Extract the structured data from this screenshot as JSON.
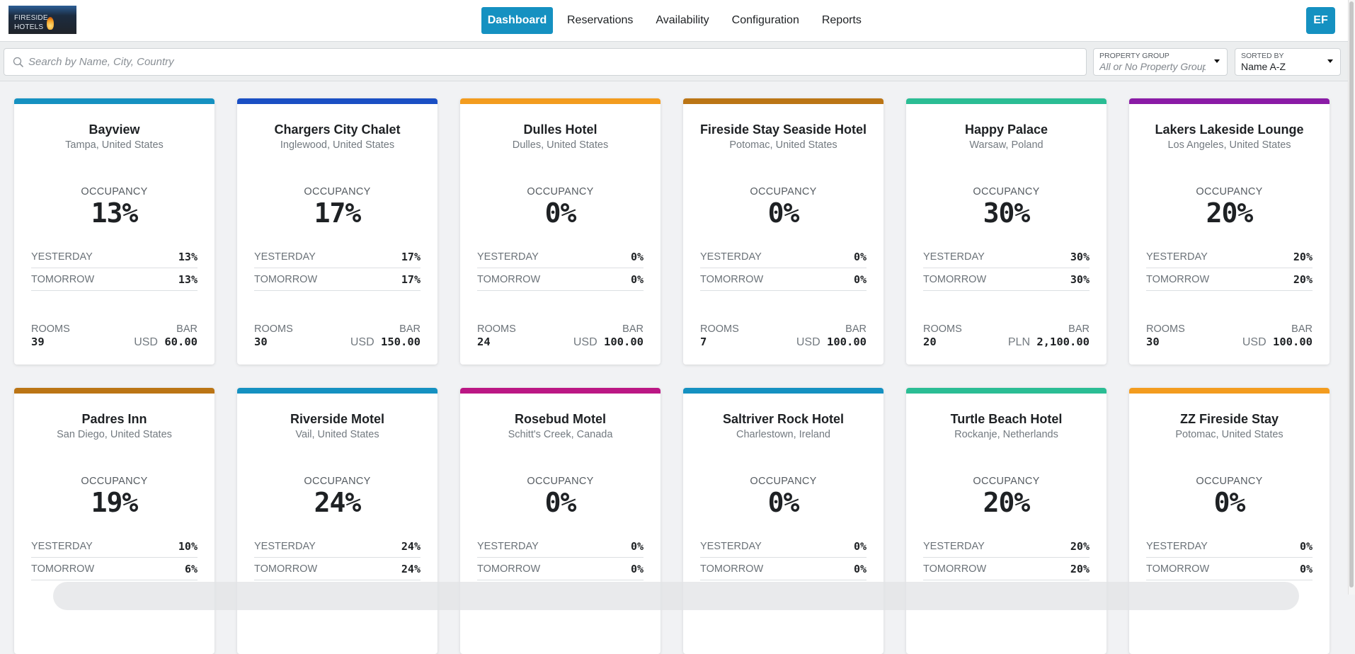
{
  "header": {
    "logo": {
      "line1": "FIRESIDE",
      "line2": "HOTELS"
    },
    "nav": [
      {
        "label": "Dashboard",
        "active": true
      },
      {
        "label": "Reservations",
        "active": false
      },
      {
        "label": "Availability",
        "active": false
      },
      {
        "label": "Configuration",
        "active": false
      },
      {
        "label": "Reports",
        "active": false
      }
    ],
    "avatar": "EF",
    "accent": "#1591c1"
  },
  "filters": {
    "search_placeholder": "Search by Name, City, Country",
    "search_value": "",
    "property_group": {
      "label": "PROPERTY GROUP",
      "value": "All or No Property Group"
    },
    "sorted_by": {
      "label": "SORTED BY",
      "value": "Name A-Z"
    }
  },
  "labels": {
    "occupancy": "OCCUPANCY",
    "yesterday": "YESTERDAY",
    "tomorrow": "TOMORROW",
    "rooms": "ROOMS",
    "bar": "BAR"
  },
  "hotels": [
    {
      "name": "Bayview",
      "location": "Tampa, United States",
      "occupancy": "13%",
      "yesterday": "13%",
      "tomorrow": "13%",
      "rooms": "39",
      "currency": "USD",
      "bar": "60.00",
      "color": "#1591c1"
    },
    {
      "name": "Chargers City Chalet",
      "location": "Inglewood, United States",
      "occupancy": "17%",
      "yesterday": "17%",
      "tomorrow": "17%",
      "rooms": "30",
      "currency": "USD",
      "bar": "150.00",
      "color": "#1a4fc4"
    },
    {
      "name": "Dulles Hotel",
      "location": "Dulles, United States",
      "occupancy": "0%",
      "yesterday": "0%",
      "tomorrow": "0%",
      "rooms": "24",
      "currency": "USD",
      "bar": "100.00",
      "color": "#f39c1f"
    },
    {
      "name": "Fireside Stay Seaside Hotel",
      "location": "Potomac, United States",
      "occupancy": "0%",
      "yesterday": "0%",
      "tomorrow": "0%",
      "rooms": "7",
      "currency": "USD",
      "bar": "100.00",
      "color": "#bb7515"
    },
    {
      "name": "Happy Palace",
      "location": "Warsaw, Poland",
      "occupancy": "30%",
      "yesterday": "30%",
      "tomorrow": "30%",
      "rooms": "20",
      "currency": "PLN",
      "bar": "2,100.00",
      "color": "#2bbd94"
    },
    {
      "name": "Lakers Lakeside Lounge",
      "location": "Los Angeles, United States",
      "occupancy": "20%",
      "yesterday": "20%",
      "tomorrow": "20%",
      "rooms": "30",
      "currency": "USD",
      "bar": "100.00",
      "color": "#8a1ba6"
    },
    {
      "name": "Padres Inn",
      "location": "San Diego, United States",
      "occupancy": "19%",
      "yesterday": "10%",
      "tomorrow": "6%",
      "color": "#bb7515"
    },
    {
      "name": "Riverside Motel",
      "location": "Vail, United States",
      "occupancy": "24%",
      "yesterday": "24%",
      "tomorrow": "24%",
      "color": "#1591c1"
    },
    {
      "name": "Rosebud Motel",
      "location": "Schitt's Creek, Canada",
      "occupancy": "0%",
      "yesterday": "0%",
      "tomorrow": "0%",
      "color": "#bb1784"
    },
    {
      "name": "Saltriver Rock Hotel",
      "location": "Charlestown, Ireland",
      "occupancy": "0%",
      "yesterday": "0%",
      "tomorrow": "0%",
      "color": "#1591c1"
    },
    {
      "name": "Turtle Beach Hotel",
      "location": "Rockanje, Netherlands",
      "occupancy": "20%",
      "yesterday": "20%",
      "tomorrow": "20%",
      "color": "#2bbd94"
    },
    {
      "name": "ZZ Fireside Stay",
      "location": "Potomac, United States",
      "occupancy": "0%",
      "yesterday": "0%",
      "tomorrow": "0%",
      "color": "#f39c1f"
    }
  ]
}
